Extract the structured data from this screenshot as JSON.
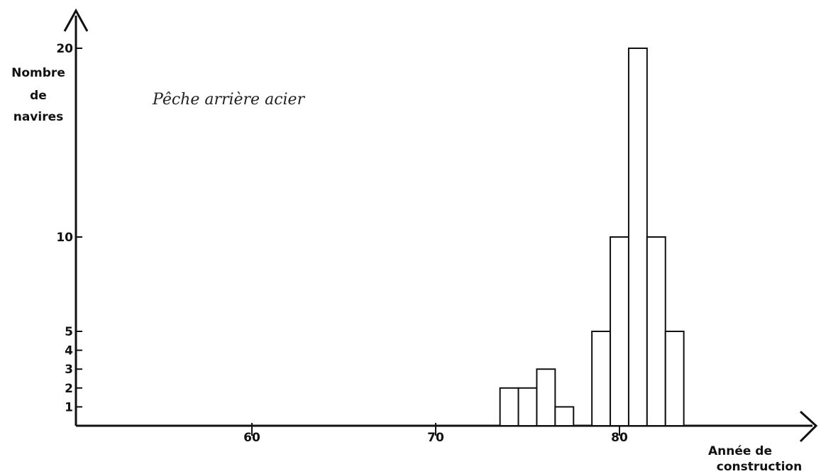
{
  "chart_data": {
    "type": "bar",
    "title": "Pêche arrière acier",
    "ylabel_lines": [
      "Nombre",
      "de",
      "navires"
    ],
    "xlabel_lines": [
      "Année de",
      "construction"
    ],
    "x_ticks": [
      "60",
      "70",
      "80"
    ],
    "y_ticks": [
      "1",
      "2",
      "3",
      "4",
      "5",
      "10",
      "20"
    ],
    "xlim": [
      50,
      90
    ],
    "ylim": [
      0,
      20
    ],
    "bars": [
      {
        "year": 74,
        "value": 2
      },
      {
        "year": 75,
        "value": 2
      },
      {
        "year": 76,
        "value": 3
      },
      {
        "year": 77,
        "value": 1
      },
      {
        "year": 79,
        "value": 5
      },
      {
        "year": 80,
        "value": 10
      },
      {
        "year": 81,
        "value": 20
      },
      {
        "year": 82,
        "value": 10
      },
      {
        "year": 83,
        "value": 5
      }
    ],
    "grid": false
  }
}
